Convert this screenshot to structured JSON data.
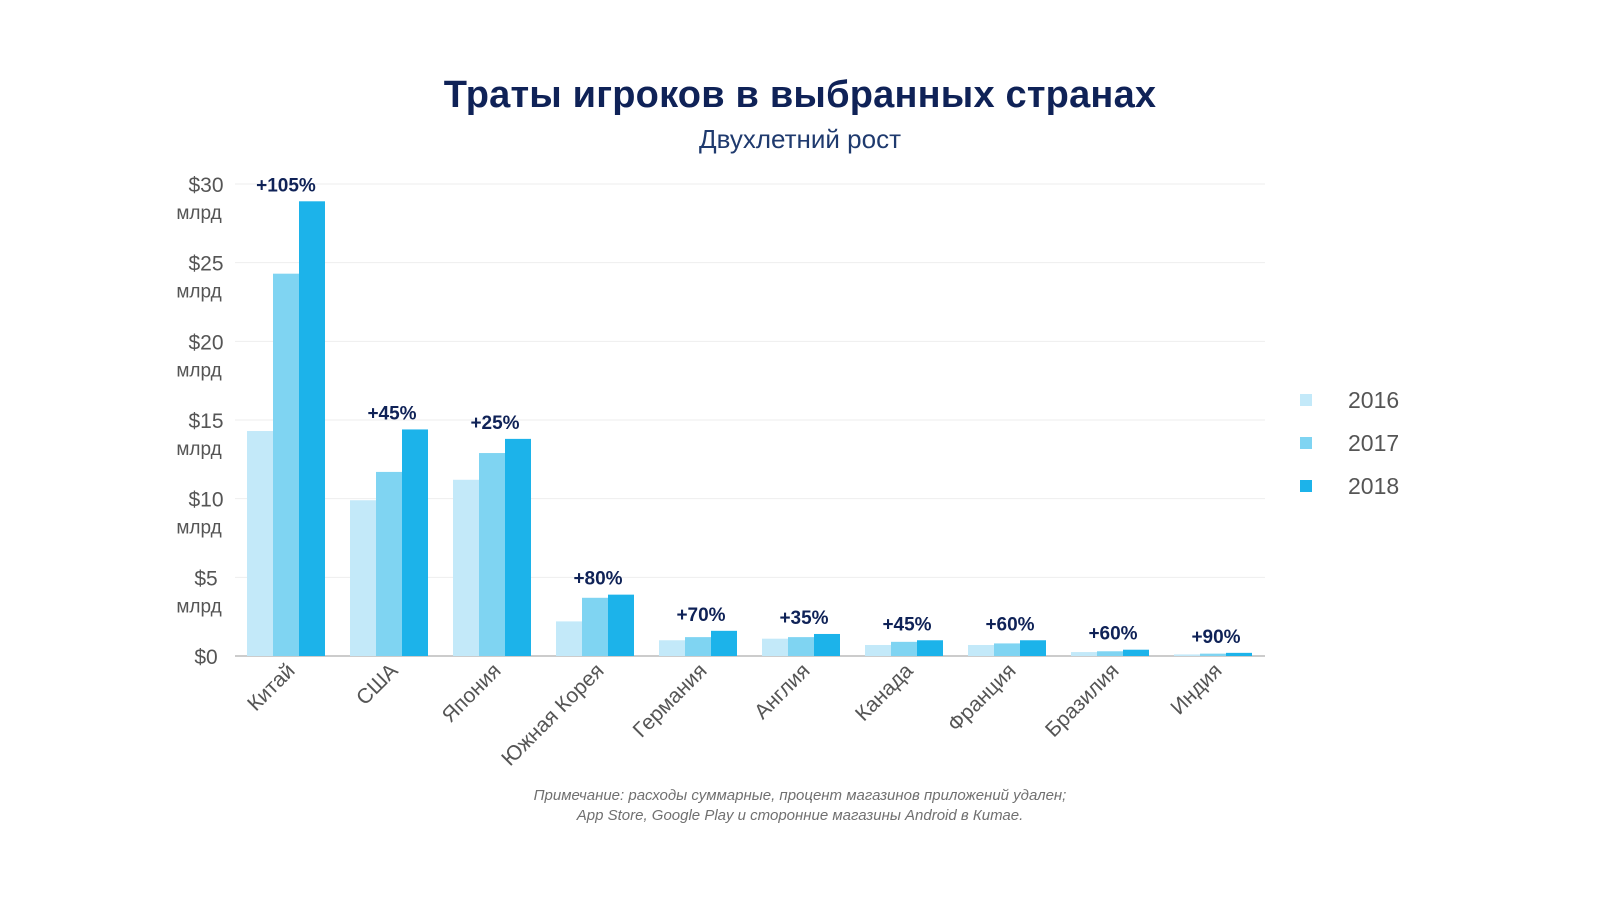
{
  "header": {
    "title": "Траты игроков в выбранных странах",
    "subtitle": "Двухлетний рост"
  },
  "note": {
    "line1": "Примечание: расходы суммарные, процент магазинов приложений удален;",
    "line2": "App Store, Google Play и сторонние магазины Android в Китае."
  },
  "colors": {
    "s2016": "#c3e9f9",
    "s2017": "#7fd4f2",
    "s2018": "#1cb3ea",
    "growth_label": "#0f2257",
    "axis_text": "#555555",
    "grid": "#eeeeee"
  },
  "chart_data": {
    "type": "bar",
    "title": "Траты игроков в выбранных странах",
    "subtitle": "Двухлетний рост",
    "categories": [
      "Китай",
      "США",
      "Япония",
      "Южная Корея",
      "Германия",
      "Англия",
      "Канада",
      "Франция",
      "Бразилия",
      "Индия"
    ],
    "series": [
      {
        "name": "2016",
        "values": [
          14.3,
          9.9,
          11.2,
          2.2,
          1.0,
          1.1,
          0.7,
          0.7,
          0.25,
          0.1
        ]
      },
      {
        "name": "2017",
        "values": [
          24.3,
          11.7,
          12.9,
          3.7,
          1.2,
          1.2,
          0.9,
          0.8,
          0.3,
          0.15
        ]
      },
      {
        "name": "2018",
        "values": [
          28.9,
          14.4,
          13.8,
          3.9,
          1.6,
          1.4,
          1.0,
          1.0,
          0.4,
          0.2
        ]
      }
    ],
    "growth_labels": [
      "+105%",
      "+45%",
      "+25%",
      "+80%",
      "+70%",
      "+35%",
      "+45%",
      "+60%",
      "+60%",
      "+90%"
    ],
    "y_ticks": [
      {
        "value": 0,
        "label": "$0",
        "unit": ""
      },
      {
        "value": 5,
        "label": "$5",
        "unit": "млрд"
      },
      {
        "value": 10,
        "label": "$10",
        "unit": "млрд"
      },
      {
        "value": 15,
        "label": "$15",
        "unit": "млрд"
      },
      {
        "value": 20,
        "label": "$20",
        "unit": "млрд"
      },
      {
        "value": 25,
        "label": "$25",
        "unit": "млрд"
      },
      {
        "value": 30,
        "label": "$30",
        "unit": "млрд"
      }
    ],
    "ylim": [
      0,
      30
    ],
    "xlabel": "",
    "ylabel": "",
    "legend": {
      "position": "right",
      "entries": [
        "2016",
        "2017",
        "2018"
      ]
    },
    "grid": true
  }
}
